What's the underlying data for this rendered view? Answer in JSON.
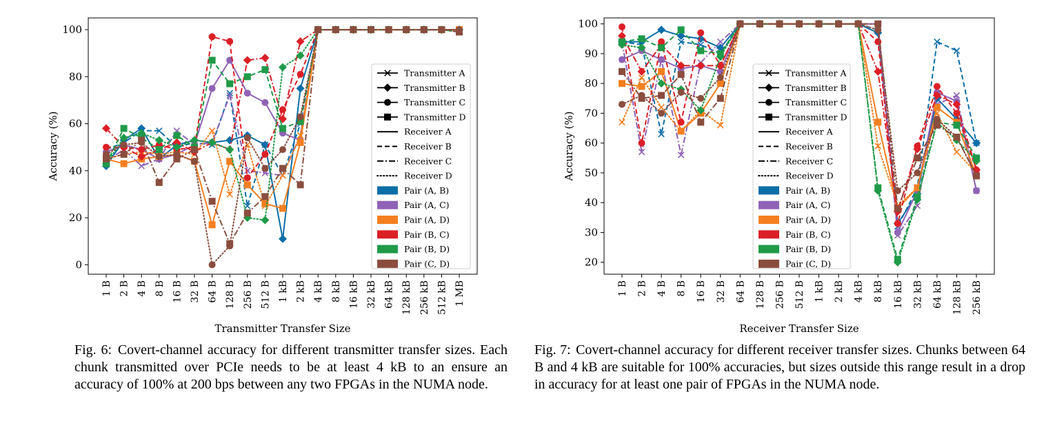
{
  "colors": {
    "AB": "#0b6ea8",
    "AC": "#8f62b5",
    "AD": "#f47f20",
    "BC": "#dc1f26",
    "BD": "#1f9a48",
    "CD": "#8a4d3e"
  },
  "legend": {
    "transmitters": [
      {
        "label": "Transmitter A",
        "marker": "x"
      },
      {
        "label": "Transmitter B",
        "marker": "diamond"
      },
      {
        "label": "Transmitter C",
        "marker": "circle"
      },
      {
        "label": "Transmitter D",
        "marker": "square"
      }
    ],
    "receivers": [
      {
        "label": "Receiver A",
        "dash": "solid"
      },
      {
        "label": "Receiver B",
        "dash": "dashed"
      },
      {
        "label": "Receiver C",
        "dash": "dashdot"
      },
      {
        "label": "Receiver D",
        "dash": "dotted"
      }
    ],
    "pairs": [
      {
        "label": "Pair (A, B)",
        "key": "AB"
      },
      {
        "label": "Pair (A, C)",
        "key": "AC"
      },
      {
        "label": "Pair (A, D)",
        "key": "AD"
      },
      {
        "label": "Pair (B, C)",
        "key": "BC"
      },
      {
        "label": "Pair (B, D)",
        "key": "BD"
      },
      {
        "label": "Pair (C, D)",
        "key": "CD"
      }
    ]
  },
  "captions": {
    "fig6_label": "Fig. 6:",
    "fig6_text": "Covert-channel accuracy for different transmitter transfer sizes. Each chunk transmitted over PCIe needs to be at least 4 kB to an ensure an accuracy of 100% at 200 bps between any two FPGAs in the NUMA node.",
    "fig7_label": "Fig. 7:",
    "fig7_text": "Covert-channel accuracy for different receiver transfer sizes. Chunks between 64 B and 4 kB are suitable for 100% accuracies, but sizes outside this range result in a drop in accuracy for at least one pair of FPGAs in the NUMA node."
  },
  "chart_data": [
    {
      "type": "line",
      "title": "",
      "xlabel": "Transmitter Transfer Size",
      "ylabel": "Accuracy (%)",
      "categories": [
        "1 B",
        "2 B",
        "4 B",
        "8 B",
        "16 B",
        "32 B",
        "64 B",
        "128 B",
        "256 B",
        "512 B",
        "1 kB",
        "2 kB",
        "4 kB",
        "8 kB",
        "16 kB",
        "32 kB",
        "64 kB",
        "128 kB",
        "256 kB",
        "512 kB",
        "1 MB"
      ],
      "ylim": [
        -4,
        105
      ],
      "yticks": [
        0,
        20,
        40,
        60,
        80,
        100
      ],
      "legend_position": "right",
      "series": [
        {
          "name": "Transmitter A, Receiver B",
          "color": "AB",
          "marker": "x",
          "dash": "dashed",
          "values": [
            49,
            52,
            57,
            57,
            50,
            52,
            51,
            73,
            25,
            51,
            38,
            60,
            100,
            100,
            100,
            100,
            100,
            100,
            100,
            100,
            100
          ]
        },
        {
          "name": "Transmitter B, Receiver A",
          "color": "AB",
          "marker": "diamond",
          "dash": "solid",
          "values": [
            42,
            53,
            58,
            45,
            51,
            53,
            52,
            53,
            55,
            51,
            11,
            75,
            100,
            100,
            100,
            100,
            100,
            100,
            100,
            100,
            100
          ]
        },
        {
          "name": "Transmitter A, Receiver C",
          "color": "AC",
          "marker": "x",
          "dash": "dashdot",
          "values": [
            44,
            49,
            42,
            45,
            57,
            51,
            52,
            72,
            40,
            39,
            38,
            55,
            100,
            100,
            100,
            100,
            100,
            100,
            100,
            100,
            100
          ]
        },
        {
          "name": "Transmitter C, Receiver A",
          "color": "AC",
          "marker": "circle",
          "dash": "solid",
          "values": [
            48,
            51,
            49,
            45,
            47,
            51,
            75,
            87,
            73,
            69,
            56,
            53,
            100,
            100,
            100,
            100,
            100,
            100,
            100,
            100,
            100
          ]
        },
        {
          "name": "Transmitter A, Receiver D",
          "color": "AD",
          "marker": "x",
          "dash": "dotted",
          "values": [
            45,
            47,
            48,
            47,
            48,
            47,
            57,
            30,
            51,
            25,
            38,
            55,
            100,
            100,
            100,
            100,
            100,
            100,
            100,
            100,
            100
          ]
        },
        {
          "name": "Transmitter D, Receiver A",
          "color": "AD",
          "marker": "square",
          "dash": "solid",
          "values": [
            45,
            43,
            45,
            46,
            47,
            44,
            17,
            44,
            34,
            26,
            24,
            52,
            100,
            100,
            100,
            100,
            100,
            100,
            100,
            100,
            100
          ]
        },
        {
          "name": "Transmitter B, Receiver C",
          "color": "BC",
          "marker": "diamond",
          "dash": "dashdot",
          "values": [
            58,
            50,
            46,
            49,
            52,
            48,
            52,
            49,
            87,
            88,
            62,
            95,
            100,
            100,
            100,
            100,
            100,
            100,
            100,
            100,
            100
          ]
        },
        {
          "name": "Transmitter C, Receiver B",
          "color": "BC",
          "marker": "circle",
          "dash": "dashed",
          "values": [
            50,
            50,
            49,
            51,
            49,
            50,
            97,
            95,
            37,
            47,
            66,
            81,
            100,
            100,
            100,
            100,
            100,
            100,
            100,
            100,
            100
          ]
        },
        {
          "name": "Transmitter B, Receiver D",
          "color": "BD",
          "marker": "diamond",
          "dash": "dotted",
          "values": [
            43,
            54,
            56,
            53,
            50,
            53,
            52,
            49,
            20,
            19,
            84,
            89,
            100,
            100,
            100,
            100,
            100,
            100,
            100,
            100,
            100
          ]
        },
        {
          "name": "Transmitter D, Receiver B",
          "color": "BD",
          "marker": "square",
          "dash": "dashed",
          "values": [
            43,
            58,
            54,
            49,
            55,
            50,
            87,
            77,
            80,
            83,
            58,
            61,
            100,
            100,
            100,
            100,
            100,
            100,
            100,
            100,
            99
          ]
        },
        {
          "name": "Transmitter C, Receiver D",
          "color": "CD",
          "marker": "circle",
          "dash": "dotted",
          "values": [
            47,
            51,
            52,
            46,
            47,
            44,
            0,
            8,
            54,
            41,
            49,
            63,
            100,
            100,
            100,
            100,
            100,
            100,
            100,
            100,
            100
          ]
        },
        {
          "name": "Transmitter D, Receiver C",
          "color": "CD",
          "marker": "square",
          "dash": "dashdot",
          "values": [
            45,
            47,
            53,
            35,
            45,
            49,
            27,
            9,
            22,
            29,
            41,
            34,
            100,
            100,
            100,
            100,
            100,
            100,
            100,
            100,
            99
          ]
        }
      ]
    },
    {
      "type": "line",
      "title": "",
      "xlabel": "Receiver Transfer Size",
      "ylabel": "Accuracy (%)",
      "categories": [
        "1 B",
        "2 B",
        "4 B",
        "8 B",
        "16 B",
        "32 B",
        "64 B",
        "128 B",
        "256 B",
        "512 B",
        "1 kB",
        "2 kB",
        "4 kB",
        "8 kB",
        "16 kB",
        "32 kB",
        "64 kB",
        "128 kB",
        "256 kB"
      ],
      "ylim": [
        16,
        102
      ],
      "yticks": [
        20,
        30,
        40,
        50,
        60,
        70,
        80,
        90,
        100
      ],
      "legend_position": "center-left",
      "series": [
        {
          "name": "Transmitter A, Receiver B",
          "color": "AB",
          "marker": "x",
          "dash": "dashed",
          "values": [
            94,
            93,
            63,
            94,
            93,
            90,
            100,
            100,
            100,
            100,
            100,
            100,
            100,
            98,
            32,
            45,
            94,
            91,
            60
          ]
        },
        {
          "name": "Transmitter B, Receiver A",
          "color": "AB",
          "marker": "diamond",
          "dash": "solid",
          "values": [
            94,
            94,
            98,
            96,
            95,
            92,
            100,
            100,
            100,
            100,
            100,
            100,
            100,
            97,
            33,
            43,
            75,
            68,
            60
          ]
        },
        {
          "name": "Transmitter A, Receiver C",
          "color": "AC",
          "marker": "x",
          "dash": "dashdot",
          "values": [
            94,
            57,
            88,
            56,
            87,
            94,
            100,
            100,
            100,
            100,
            100,
            100,
            100,
            100,
            29,
            39,
            73,
            76,
            44
          ]
        },
        {
          "name": "Transmitter C, Receiver A",
          "color": "AC",
          "marker": "circle",
          "dash": "solid",
          "values": [
            88,
            91,
            88,
            85,
            86,
            84,
            100,
            100,
            100,
            100,
            100,
            100,
            100,
            100,
            30,
            44,
            77,
            74,
            44
          ]
        },
        {
          "name": "Transmitter A, Receiver D",
          "color": "AD",
          "marker": "x",
          "dash": "dotted",
          "values": [
            67,
            82,
            72,
            64,
            71,
            66,
            100,
            100,
            100,
            100,
            100,
            100,
            100,
            59,
            39,
            45,
            70,
            57,
            50
          ]
        },
        {
          "name": "Transmitter D, Receiver A",
          "color": "AD",
          "marker": "square",
          "dash": "solid",
          "values": [
            80,
            79,
            84,
            64,
            70,
            80,
            100,
            100,
            100,
            100,
            100,
            100,
            100,
            67,
            38,
            45,
            72,
            67,
            49
          ]
        },
        {
          "name": "Transmitter B, Receiver C",
          "color": "BC",
          "marker": "diamond",
          "dash": "dashdot",
          "values": [
            96,
            84,
            93,
            86,
            86,
            86,
            100,
            100,
            100,
            100,
            100,
            100,
            100,
            84,
            37,
            58,
            76,
            73,
            51
          ]
        },
        {
          "name": "Transmitter C, Receiver B",
          "color": "BC",
          "marker": "circle",
          "dash": "dashed",
          "values": [
            99,
            60,
            94,
            67,
            97,
            86,
            100,
            100,
            100,
            100,
            100,
            100,
            100,
            94,
            33,
            59,
            79,
            70,
            51
          ]
        },
        {
          "name": "Transmitter B, Receiver D",
          "color": "BD",
          "marker": "diamond",
          "dash": "dotted",
          "values": [
            93,
            92,
            80,
            78,
            71,
            89,
            100,
            100,
            100,
            100,
            100,
            100,
            100,
            44,
            20,
            41,
            67,
            61,
            54
          ]
        },
        {
          "name": "Transmitter D, Receiver B",
          "color": "BD",
          "marker": "square",
          "dash": "dashed",
          "values": [
            94,
            95,
            92,
            98,
            91,
            90,
            100,
            100,
            100,
            100,
            100,
            100,
            100,
            45,
            21,
            42,
            67,
            66,
            55
          ]
        },
        {
          "name": "Transmitter C, Receiver D",
          "color": "CD",
          "marker": "circle",
          "dash": "dotted",
          "values": [
            73,
            76,
            70,
            77,
            75,
            82,
            100,
            100,
            100,
            100,
            100,
            100,
            100,
            98,
            44,
            50,
            68,
            62,
            49
          ]
        },
        {
          "name": "Transmitter D, Receiver C",
          "color": "CD",
          "marker": "square",
          "dash": "dashdot",
          "values": [
            84,
            75,
            76,
            83,
            67,
            75,
            100,
            100,
            100,
            100,
            100,
            100,
            100,
            100,
            38,
            55,
            66,
            62,
            49
          ]
        }
      ]
    }
  ]
}
